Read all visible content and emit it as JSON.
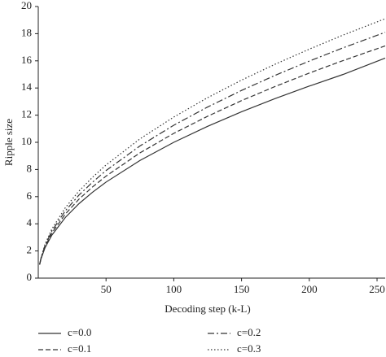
{
  "chart_data": {
    "type": "line",
    "x_label": "Decoding step (k-L)",
    "y_label": "Ripple size",
    "x": [
      1,
      2,
      5,
      10,
      20,
      30,
      40,
      50,
      75,
      100,
      125,
      150,
      175,
      200,
      225,
      256
    ],
    "series": [
      {
        "name": "c=0.0",
        "color": "#333333",
        "dash": "solid",
        "values": [
          1,
          1.41,
          2.24,
          3.16,
          4.47,
          5.48,
          6.32,
          7.07,
          8.66,
          10,
          11.18,
          12.25,
          13.23,
          14.14,
          15,
          16.2
        ]
      },
      {
        "name": "c=0.1",
        "color": "#333333",
        "dash": "dashed",
        "values": [
          1,
          1.44,
          2.33,
          3.32,
          4.72,
          5.81,
          6.71,
          7.51,
          9.22,
          10.66,
          11.92,
          13.07,
          14.12,
          15.1,
          16.02,
          17.1
        ]
      },
      {
        "name": "c=0.2",
        "color": "#333333",
        "dash": "dashdot",
        "values": [
          1,
          1.47,
          2.41,
          3.46,
          4.96,
          6.11,
          7.06,
          7.92,
          9.73,
          11.26,
          12.6,
          13.82,
          14.94,
          15.98,
          16.96,
          18.1
        ]
      },
      {
        "name": "c=0.3",
        "color": "#333333",
        "dash": "dotted",
        "values": [
          1,
          1.49,
          2.5,
          3.61,
          5.19,
          6.41,
          7.42,
          8.33,
          10.25,
          11.86,
          13.29,
          14.58,
          15.76,
          16.86,
          17.9,
          19.1
        ]
      }
    ],
    "xlim": [
      0,
      256
    ],
    "ylim": [
      0,
      20
    ],
    "xticks": [
      50,
      100,
      150,
      200,
      250
    ],
    "yticks": [
      0,
      2,
      4,
      6,
      8,
      10,
      12,
      14,
      16,
      18,
      20
    ],
    "legend": "bottom",
    "grid": false
  }
}
